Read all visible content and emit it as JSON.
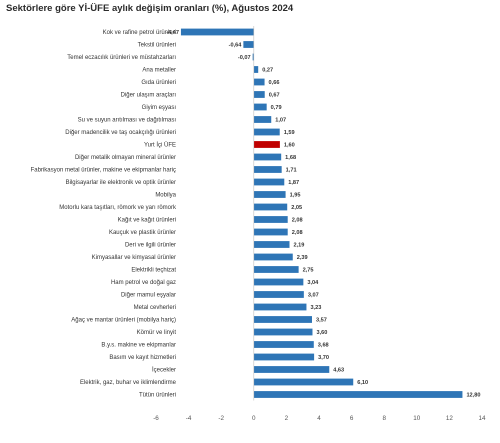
{
  "chart_data": {
    "type": "bar",
    "orientation": "horizontal",
    "title": "Sektörlere göre Yİ-ÜFE aylık değişim oranları (%), Ağustos 2024",
    "xlim": [
      -6,
      14
    ],
    "xticks": [
      -6,
      -4,
      -2,
      0,
      2,
      4,
      6,
      8,
      10,
      12,
      14
    ],
    "grid": false,
    "colors": {
      "default": "#2e75b6",
      "highlight": "#c00000"
    },
    "highlight_category": "Yurt İçi ÜFE",
    "categories": [
      "Kok ve rafine petrol ürünleri",
      "Tekstil ürünleri",
      "Temel eczacılık ürünleri ve müstahzarları",
      "Ana metaller",
      "Gıda ürünleri",
      "Diğer ulaşım araçları",
      "Giyim eşyası",
      "Su ve suyun arıtılması ve dağıtılması",
      "Diğer madencilik ve taş ocakçılığı ürünleri",
      "Yurt İçi ÜFE",
      "Diğer metalik olmayan mineral ürünler",
      "Fabrikasyon metal ürünler, makine ve ekipmanlar hariç",
      "Bilgisayarlar ile elektronik ve optik ürünler",
      "Mobilya",
      "Motorlu kara taşıtları, römork ve yarı römork",
      "Kağıt ve kağıt ürünleri",
      "Kauçuk ve plastik ürünler",
      "Deri ve ilgili ürünler",
      "Kimyasallar ve kimyasal ürünler",
      "Elektrikli teçhizat",
      "Ham petrol ve doğal gaz",
      "Diğer mamul eşyalar",
      "Metal cevherleri",
      "Ağaç ve mantar ürünleri (mobilya hariç)",
      "Kömür ve linyit",
      "B.y.s. makine ve ekipmanlar",
      "Basım ve kayıt hizmetleri",
      "İçecekler",
      "Elektrik, gaz, buhar ve iklimlendirme",
      "Tütün ürünleri"
    ],
    "values": [
      -4.47,
      -0.64,
      -0.07,
      0.27,
      0.66,
      0.67,
      0.79,
      1.07,
      1.59,
      1.6,
      1.68,
      1.71,
      1.87,
      1.95,
      2.05,
      2.08,
      2.08,
      2.19,
      2.39,
      2.75,
      3.04,
      3.07,
      3.23,
      3.57,
      3.6,
      3.68,
      3.7,
      4.63,
      6.1,
      12.8
    ],
    "labels": [
      "-4,47",
      "-0,64",
      "-0,07",
      "0,27",
      "0,66",
      "0,67",
      "0,79",
      "1,07",
      "1,59",
      "1,60",
      "1,68",
      "1,71",
      "1,87",
      "1,95",
      "2,05",
      "2,08",
      "2,08",
      "2,19",
      "2,39",
      "2,75",
      "3,04",
      "3,07",
      "3,23",
      "3,57",
      "3,60",
      "3,68",
      "3,70",
      "4,63",
      "6,10",
      "12,80"
    ]
  }
}
